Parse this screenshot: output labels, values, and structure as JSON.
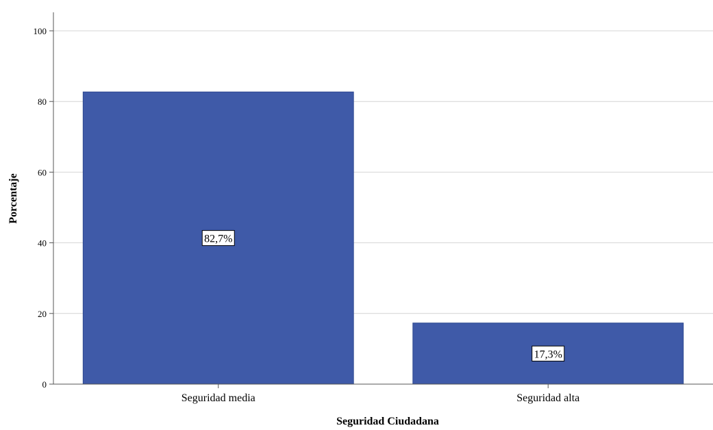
{
  "chart_data": {
    "type": "bar",
    "categories": [
      "Seguridad media",
      "Seguridad alta"
    ],
    "values": [
      82.7,
      17.3
    ],
    "data_labels": [
      "82,7%",
      "17,3%"
    ],
    "title": "",
    "xlabel": "Seguridad Ciudadana",
    "ylabel": "Porcentaje",
    "ylim": [
      0,
      100
    ],
    "yticks": [
      0,
      20,
      40,
      60,
      80,
      100
    ],
    "grid": true,
    "legend": "none",
    "colors": {
      "bar": "#3f5aa8",
      "bar_stroke": "#2f4a90",
      "grid": "#d4d4d4",
      "axis": "#555555",
      "text": "#000000"
    }
  }
}
